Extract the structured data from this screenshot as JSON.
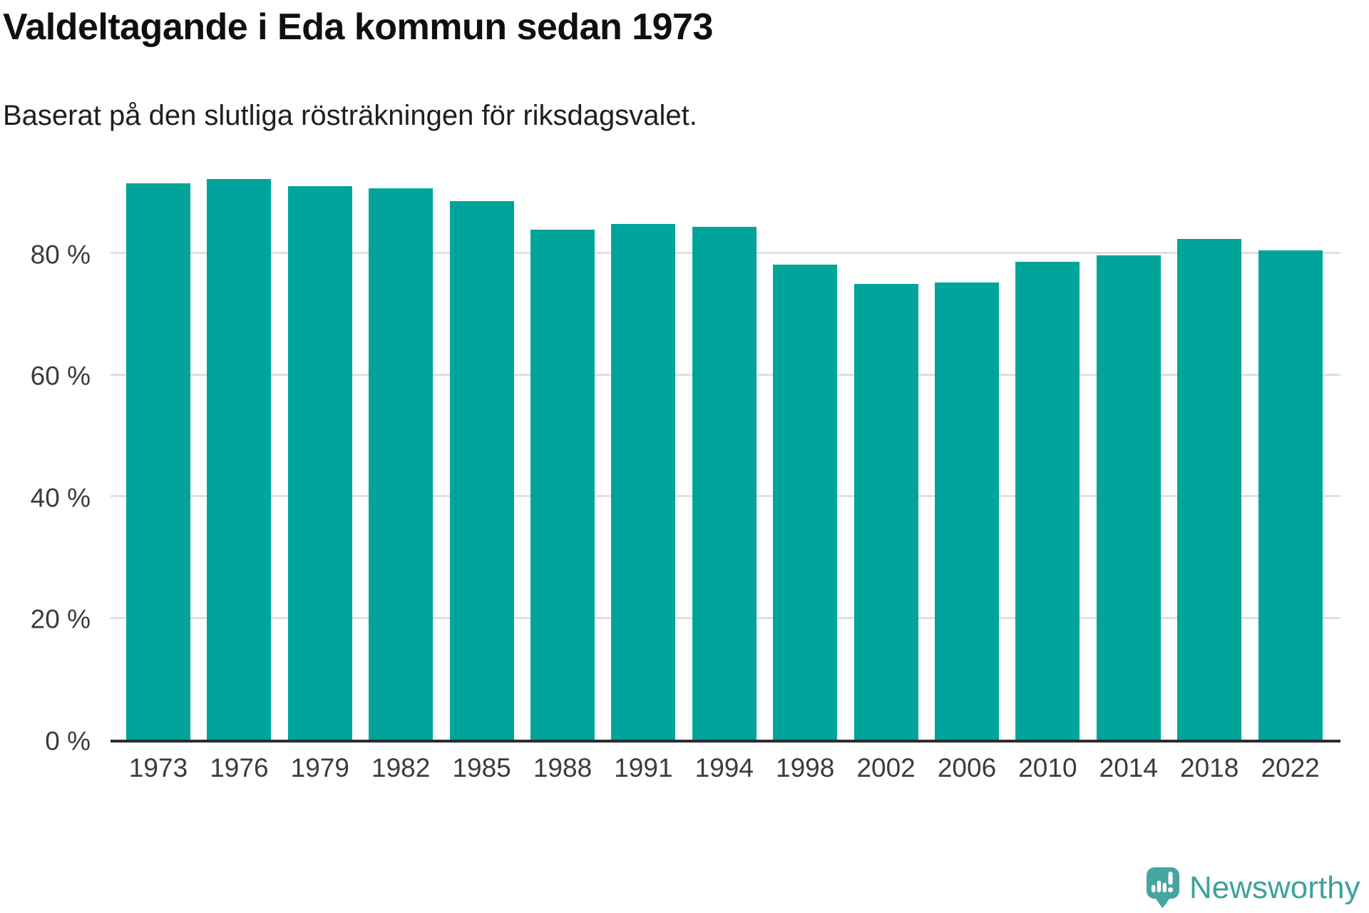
{
  "header": {
    "title": "Valdeltagande i Eda kommun sedan 1973",
    "subtitle": "Baserat på den slutliga rösträkningen för riksdagsvalet."
  },
  "footer": {
    "brand": "Newsworthy"
  },
  "colors": {
    "bar": "#00a49a",
    "gridline": "#e0e0e0",
    "axis_line": "#2d2d2d",
    "tick_text": "#3b3b3b",
    "title_text": "#0f0f0f",
    "logo_teal": "#46a59f"
  },
  "chart_data": {
    "type": "bar",
    "title": "Valdeltagande i Eda kommun sedan 1973",
    "subtitle": "Baserat på den slutliga rösträkningen för riksdagsvalet.",
    "categories": [
      "1973",
      "1976",
      "1979",
      "1982",
      "1985",
      "1988",
      "1991",
      "1994",
      "1998",
      "2002",
      "2006",
      "2010",
      "2014",
      "2018",
      "2022"
    ],
    "values": [
      91.4,
      92.1,
      91.0,
      90.6,
      88.5,
      83.8,
      84.8,
      84.3,
      78.1,
      74.9,
      75.2,
      78.5,
      79.6,
      82.3,
      80.4
    ],
    "unit": "%",
    "xlabel": "",
    "ylabel": "",
    "ylim": [
      0,
      100
    ],
    "yticks": [
      {
        "value": 0,
        "label": "0 %"
      },
      {
        "value": 20,
        "label": "20 %"
      },
      {
        "value": 40,
        "label": "40 %"
      },
      {
        "value": 60,
        "label": "60 %"
      },
      {
        "value": 80,
        "label": "80 %"
      }
    ],
    "grid": true,
    "legend": "none"
  }
}
